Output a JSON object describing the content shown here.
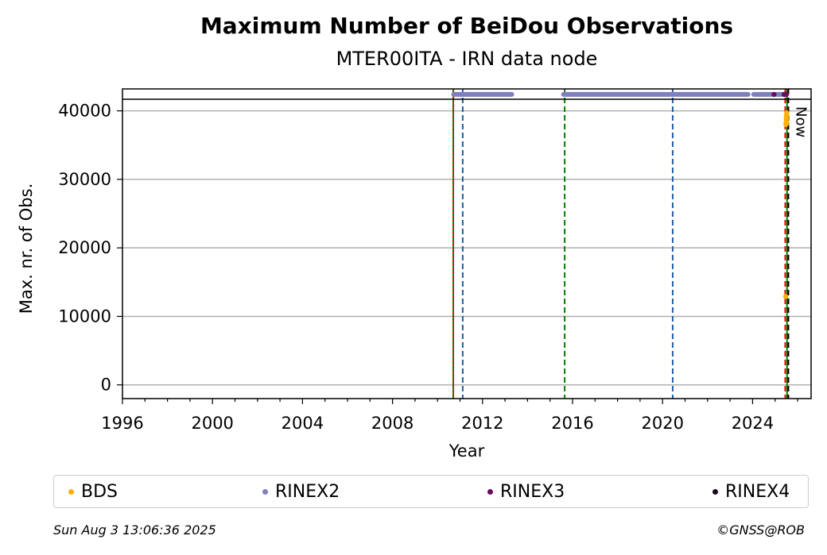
{
  "chart_data": {
    "type": "scatter",
    "title": "Maximum Number of BeiDou Observations",
    "subtitle": "MTER00ITA - IRN data node",
    "xlabel": "Year",
    "ylabel": "Max. nr. of Obs.",
    "xlim": [
      1996,
      2026.6
    ],
    "ylim": [
      -2000,
      43200
    ],
    "x_ticks": [
      1996,
      2000,
      2004,
      2008,
      2012,
      2016,
      2020,
      2024
    ],
    "y_ticks": [
      0,
      10000,
      20000,
      30000,
      40000
    ],
    "grid": "y",
    "now_label": "Now",
    "now_x": 2025.59,
    "top_line_y": 41700,
    "vlines": [
      {
        "x": 2010.7,
        "color": "#008000",
        "style": "solid"
      },
      {
        "x": 2010.7,
        "color": "#ff0000",
        "style": "dotted"
      },
      {
        "x": 2011.12,
        "color": "#1f5fa8",
        "style": "dashed"
      },
      {
        "x": 2015.65,
        "color": "#008000",
        "style": "dashed"
      },
      {
        "x": 2020.45,
        "color": "#1f5fa8",
        "style": "dashed"
      },
      {
        "x": 2025.45,
        "color": "#ff0000",
        "style": "dashed"
      },
      {
        "x": 2025.53,
        "color": "#008000",
        "style": "solid"
      },
      {
        "x": 2025.59,
        "color": "#000000",
        "style": "dashed"
      }
    ],
    "series": [
      {
        "name": "BDS",
        "color": "#ffb000",
        "points": [
          [
            2025.47,
            12900
          ],
          [
            2025.48,
            38000
          ],
          [
            2025.49,
            38400
          ],
          [
            2025.5,
            38800
          ],
          [
            2025.5,
            39100
          ],
          [
            2025.51,
            39400
          ],
          [
            2025.52,
            39700
          ],
          [
            2025.53,
            38200
          ]
        ]
      },
      {
        "name": "RINEX2",
        "color": "#7f7fbf",
        "segments": [
          [
            2010.72,
            2013.3
          ],
          [
            2015.6,
            2023.8
          ],
          [
            2024.05,
            2024.85
          ],
          [
            2025.05,
            2025.35
          ]
        ],
        "value": 42400
      },
      {
        "name": "RINEX3",
        "color": "#6a0a5a",
        "points": [
          [
            2024.95,
            42400
          ],
          [
            2025.4,
            42400
          ],
          [
            2025.45,
            42400
          ],
          [
            2025.5,
            42400
          ]
        ]
      },
      {
        "name": "RINEX4",
        "color": "#1e0820",
        "points": []
      }
    ]
  },
  "legend": {
    "items": [
      {
        "label": "BDS",
        "color": "#ffb000"
      },
      {
        "label": "RINEX2",
        "color": "#7f7fbf"
      },
      {
        "label": "RINEX3",
        "color": "#6a0a5a"
      },
      {
        "label": "RINEX4",
        "color": "#1e0820"
      }
    ]
  },
  "footer": {
    "timestamp": "Sun Aug  3 13:06:36 2025",
    "copyright": "©GNSS@ROB"
  }
}
